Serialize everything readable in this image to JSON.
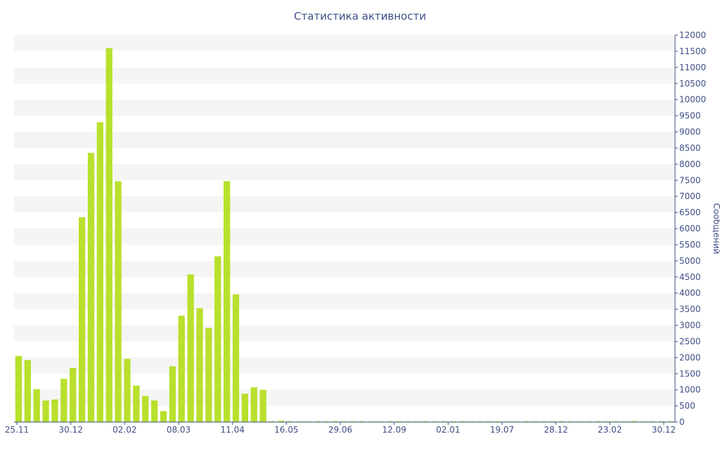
{
  "chart_data": {
    "type": "bar",
    "title": "Статистика активности",
    "xlabel": "",
    "ylabel": "Сообщений",
    "ylim": [
      0,
      12000
    ],
    "y_ticks": [
      0,
      500,
      1000,
      1500,
      2000,
      2500,
      3000,
      3500,
      4000,
      4500,
      5000,
      5500,
      6000,
      6500,
      7000,
      7500,
      8000,
      8500,
      9000,
      9500,
      10000,
      10500,
      11000,
      11500,
      12000
    ],
    "y_axis_position": "right",
    "grid": "alternating horizontal bands",
    "x_tick_labels": [
      "25.11",
      "30.12",
      "02.02",
      "08.03",
      "11.04",
      "16.05",
      "29.06",
      "12.09",
      "02.01",
      "19.07",
      "28.12",
      "23.02",
      "30.12"
    ],
    "values": [
      2050,
      1920,
      1020,
      670,
      700,
      1340,
      1680,
      6350,
      8350,
      9300,
      11600,
      7470,
      1960,
      1130,
      810,
      670,
      340,
      1730,
      3300,
      4580,
      3530,
      2920,
      5140,
      7470,
      3960,
      880,
      1080,
      1000,
      25,
      40,
      10,
      10,
      10,
      5,
      10,
      30,
      20,
      10,
      10,
      15,
      5,
      10,
      20,
      10,
      10,
      5,
      20,
      10,
      15,
      20,
      5,
      10,
      5,
      10,
      10,
      10,
      10,
      10,
      10,
      10,
      15,
      20,
      10,
      10,
      10,
      10,
      10,
      10,
      30,
      10,
      10,
      10,
      10
    ],
    "bar_color": "#b8e02c",
    "band_color": "#f5f5f5",
    "text_color": "#3e4f86"
  }
}
